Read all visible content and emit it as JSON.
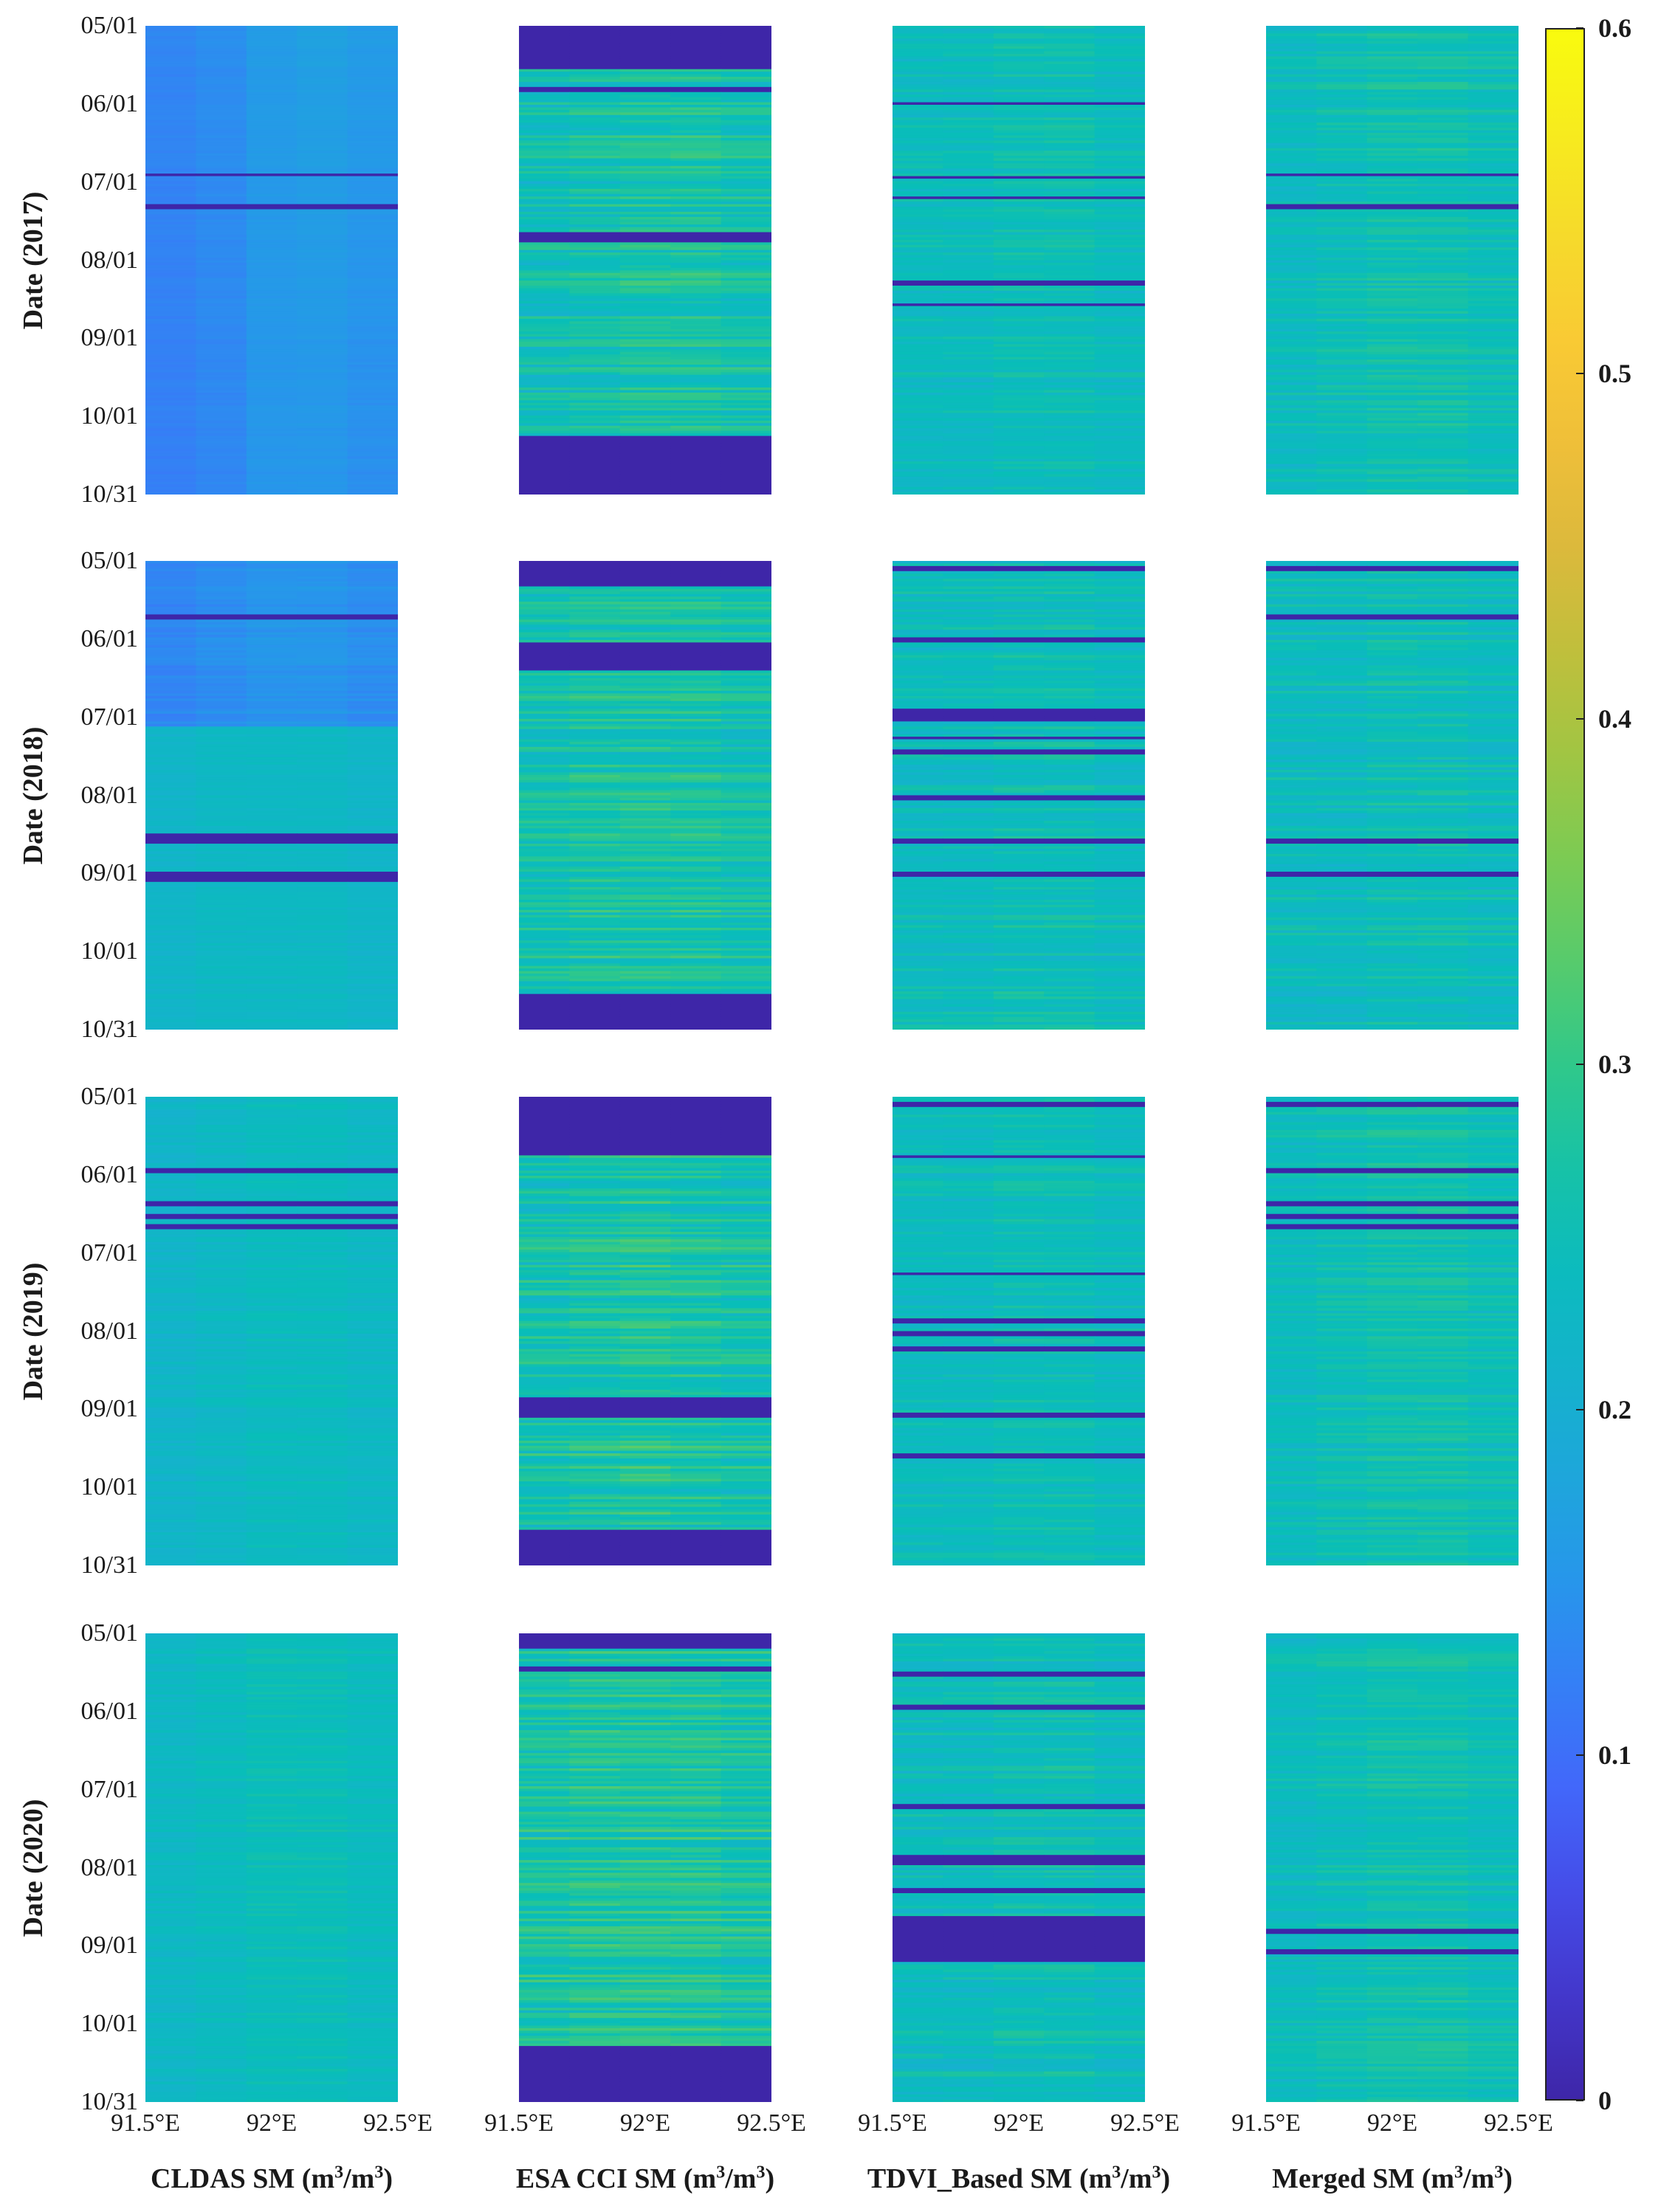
{
  "chart_data": {
    "type": "heatmap",
    "description_units": "soil moisture (m3/m3)",
    "colormap": "parula",
    "color_limits": [
      0,
      0.6
    ],
    "colorbar": {
      "ticks": [
        0,
        0.1,
        0.2,
        0.3,
        0.4,
        0.5,
        0.6
      ],
      "tick_labels": [
        "0",
        "0.1",
        "0.2",
        "0.3",
        "0.4",
        "0.5",
        "0.6"
      ]
    },
    "x_axis": {
      "range": [
        91.5,
        92.5
      ],
      "tick_labels": [
        "91.5°E",
        "92°E",
        "92.5°E"
      ]
    },
    "y_axis": {
      "tick_labels": [
        "05/01",
        "06/01",
        "07/01",
        "08/01",
        "09/01",
        "10/01",
        "10/31"
      ]
    },
    "columns": [
      {
        "key": "cldas",
        "title_main": "CLDAS SM (m",
        "title_sup1": "3",
        "title_mid": "/m",
        "title_sup2": "3",
        "title_end": ")"
      },
      {
        "key": "esa",
        "title_main": "ESA CCI SM (m",
        "title_sup1": "3",
        "title_mid": "/m",
        "title_sup2": "3",
        "title_end": ")"
      },
      {
        "key": "tdvi",
        "title_main": "TDVI_Based SM (m",
        "title_sup1": "3",
        "title_mid": "/m",
        "title_sup2": "3",
        "title_end": ")"
      },
      {
        "key": "merged",
        "title_main": "Merged SM (m",
        "title_sup1": "3",
        "title_mid": "/m",
        "title_sup2": "3",
        "title_end": ")"
      }
    ],
    "rows": [
      {
        "year_label": "Date (2017)",
        "panels": {
          "cldas": {
            "base": [
              0.13,
              0.14,
              0.16,
              0.17,
              0.16
            ],
            "base_end": [
              0.12,
              0.13,
              0.15,
              0.15,
              0.14
            ],
            "noise": 0.005,
            "gaps": [
              [
                0.31,
                0.32
              ],
              [
                0.38,
                0.39
              ]
            ]
          },
          "esa": {
            "base": [
              0.25,
              0.26,
              0.27,
              0.27,
              0.26
            ],
            "noise": 0.04,
            "gaps": [
              [
                0.0,
                0.09
              ],
              [
                0.44,
                0.46
              ],
              [
                0.87,
                1.0
              ],
              [
                0.13,
                0.14
              ]
            ]
          },
          "tdvi": {
            "base": [
              0.24,
              0.24,
              0.25,
              0.25,
              0.24
            ],
            "noise": 0.025,
            "gaps": [
              [
                0.16,
                0.165
              ],
              [
                0.32,
                0.325
              ],
              [
                0.36,
                0.365
              ],
              [
                0.54,
                0.55
              ],
              [
                0.59,
                0.595
              ]
            ]
          },
          "merged": {
            "base": [
              0.24,
              0.25,
              0.26,
              0.26,
              0.25
            ],
            "noise": 0.025,
            "gaps": [
              [
                0.31,
                0.32
              ],
              [
                0.38,
                0.39
              ]
            ]
          }
        }
      },
      {
        "year_label": "Date (2018)",
        "panels": {
          "cldas": {
            "base": [
              0.13,
              0.14,
              0.15,
              0.15,
              0.14
            ],
            "base_end": [
              0.22,
              0.23,
              0.23,
              0.23,
              0.22
            ],
            "noise": 0.01,
            "gaps": [
              [
                0.11,
                0.12
              ],
              [
                0.58,
                0.6
              ],
              [
                0.66,
                0.68
              ]
            ]
          },
          "esa": {
            "base": [
              0.26,
              0.27,
              0.27,
              0.27,
              0.26
            ],
            "noise": 0.04,
            "gaps": [
              [
                0.0,
                0.05
              ],
              [
                0.17,
                0.23
              ],
              [
                0.92,
                1.0
              ]
            ]
          },
          "tdvi": {
            "base": [
              0.24,
              0.24,
              0.25,
              0.25,
              0.24
            ],
            "noise": 0.03,
            "gaps": [
              [
                0.01,
                0.02
              ],
              [
                0.16,
                0.17
              ],
              [
                0.31,
                0.34
              ],
              [
                0.37,
                0.38
              ],
              [
                0.4,
                0.41
              ],
              [
                0.5,
                0.51
              ],
              [
                0.59,
                0.6
              ],
              [
                0.66,
                0.67
              ]
            ]
          },
          "merged": {
            "base": [
              0.24,
              0.24,
              0.25,
              0.25,
              0.24
            ],
            "noise": 0.03,
            "gaps": [
              [
                0.01,
                0.02
              ],
              [
                0.11,
                0.12
              ],
              [
                0.59,
                0.6
              ],
              [
                0.66,
                0.67
              ]
            ]
          }
        }
      },
      {
        "year_label": "Date (2019)",
        "panels": {
          "cldas": {
            "base": [
              0.22,
              0.23,
              0.24,
              0.24,
              0.23
            ],
            "noise": 0.015,
            "gaps": [
              [
                0.15,
                0.16
              ],
              [
                0.22,
                0.23
              ],
              [
                0.25,
                0.26
              ],
              [
                0.27,
                0.28
              ]
            ]
          },
          "esa": {
            "base": [
              0.26,
              0.27,
              0.28,
              0.27,
              0.26
            ],
            "noise": 0.045,
            "gaps": [
              [
                0.0,
                0.12
              ],
              [
                0.92,
                1.0
              ],
              [
                0.64,
                0.68
              ]
            ]
          },
          "tdvi": {
            "base": [
              0.24,
              0.24,
              0.25,
              0.25,
              0.24
            ],
            "noise": 0.025,
            "gaps": [
              [
                0.01,
                0.02
              ],
              [
                0.12,
                0.13
              ],
              [
                0.37,
                0.38
              ],
              [
                0.47,
                0.48
              ],
              [
                0.5,
                0.51
              ],
              [
                0.53,
                0.54
              ],
              [
                0.67,
                0.68
              ],
              [
                0.76,
                0.77
              ]
            ]
          },
          "merged": {
            "base": [
              0.24,
              0.25,
              0.26,
              0.26,
              0.25
            ],
            "noise": 0.025,
            "gaps": [
              [
                0.01,
                0.02
              ],
              [
                0.15,
                0.16
              ],
              [
                0.22,
                0.23
              ],
              [
                0.25,
                0.26
              ],
              [
                0.27,
                0.28
              ]
            ]
          }
        }
      },
      {
        "year_label": "Date (2020)",
        "panels": {
          "cldas": {
            "base": [
              0.23,
              0.24,
              0.25,
              0.25,
              0.24
            ],
            "noise": 0.015,
            "gaps": []
          },
          "esa": {
            "base": [
              0.27,
              0.28,
              0.28,
              0.28,
              0.27
            ],
            "noise": 0.045,
            "gaps": [
              [
                0.0,
                0.03
              ],
              [
                0.88,
                1.0
              ],
              [
                0.07,
                0.08
              ]
            ]
          },
          "tdvi": {
            "base": [
              0.24,
              0.24,
              0.25,
              0.25,
              0.24
            ],
            "noise": 0.03,
            "gaps": [
              [
                0.08,
                0.09
              ],
              [
                0.15,
                0.16
              ],
              [
                0.36,
                0.37
              ],
              [
                0.47,
                0.49
              ],
              [
                0.54,
                0.55
              ],
              [
                0.6,
                0.7
              ]
            ]
          },
          "merged": {
            "base": [
              0.24,
              0.25,
              0.26,
              0.26,
              0.25
            ],
            "noise": 0.025,
            "gaps": [
              [
                0.63,
                0.64
              ],
              [
                0.67,
                0.68
              ]
            ]
          }
        }
      }
    ]
  },
  "colors": {
    "gap": "#3e26a8",
    "axis_text": "#1a1a1a"
  }
}
